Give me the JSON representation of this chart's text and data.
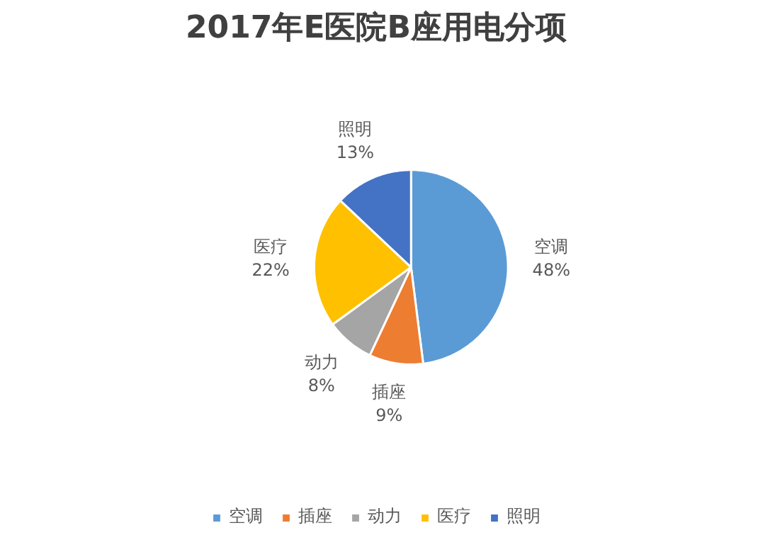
{
  "chart_data": {
    "type": "pie",
    "title": "2017年E医院B座用电分项",
    "categories": [
      "空调",
      "插座",
      "动力",
      "医疗",
      "照明"
    ],
    "values": [
      48,
      9,
      8,
      22,
      13
    ],
    "value_labels": [
      "48%",
      "9%",
      "8%",
      "22%",
      "13%"
    ],
    "colors": [
      "#5b9bd5",
      "#ed7d31",
      "#a5a5a5",
      "#ffc000",
      "#4472c4"
    ],
    "legend": "bottom"
  }
}
